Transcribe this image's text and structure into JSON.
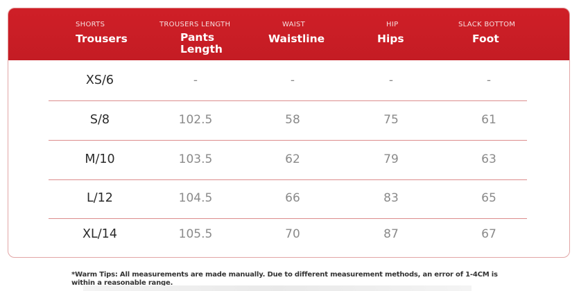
{
  "header": {
    "columns": [
      {
        "sub": "SHORTS",
        "main": "Trousers"
      },
      {
        "sub": "TROUSERS LENGTH",
        "main": "Pants\nLength"
      },
      {
        "sub": "WAIST",
        "main": "Waistline"
      },
      {
        "sub": "HIP",
        "main": "Hips"
      },
      {
        "sub": "SLACK BOTTOM",
        "main": "Foot"
      }
    ]
  },
  "rows": [
    {
      "size": "XS/6",
      "length": "-",
      "waist": "-",
      "hips": "-",
      "foot": "-"
    },
    {
      "size": "S/8",
      "length": "102.5",
      "waist": "58",
      "hips": "75",
      "foot": "61"
    },
    {
      "size": "M/10",
      "length": "103.5",
      "waist": "62",
      "hips": "79",
      "foot": "63"
    },
    {
      "size": "L/12",
      "length": "104.5",
      "waist": "66",
      "hips": "83",
      "foot": "65"
    },
    {
      "size": "XL/14",
      "length": "105.5",
      "waist": "70",
      "hips": "87",
      "foot": "67"
    }
  ],
  "footer": {
    "tip": "*Warm Tips: All measurements are made manually. Due to different measurement methods, an error of 1-4CM is within a reasonable range."
  },
  "colors": {
    "header_red": "#c81d25",
    "row_line": "#dc8c8c"
  }
}
